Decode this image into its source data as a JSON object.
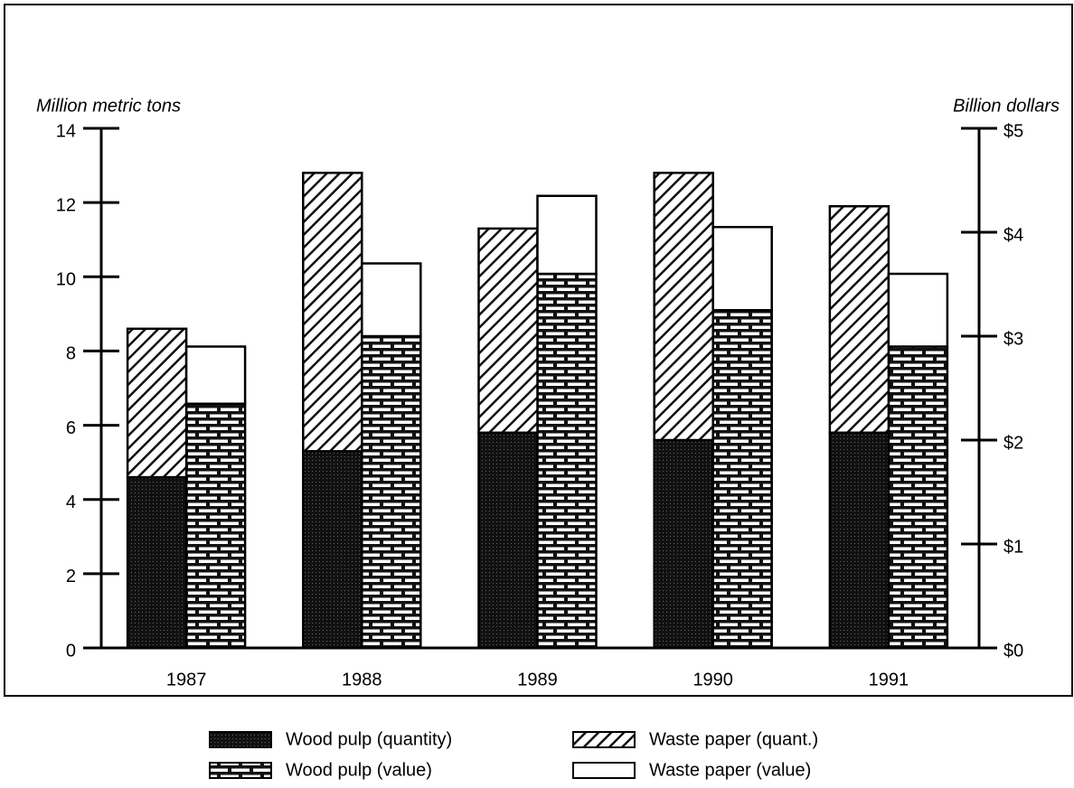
{
  "chart_data": {
    "type": "bar",
    "stacked": true,
    "categories": [
      "1987",
      "1988",
      "1989",
      "1990",
      "1991"
    ],
    "ylabel": "Million metric tons",
    "y2label": "Billion dollars",
    "ylim": [
      0,
      14
    ],
    "yticks": [
      0,
      2,
      4,
      6,
      8,
      10,
      12,
      14
    ],
    "y2lim": [
      0,
      5
    ],
    "y2ticks": [
      {
        "value": 0,
        "label": "$0"
      },
      {
        "value": 1,
        "label": "$1"
      },
      {
        "value": 2,
        "label": "$2"
      },
      {
        "value": 3,
        "label": "$3"
      },
      {
        "value": 4,
        "label": "$4"
      },
      {
        "value": 5,
        "label": "$5"
      }
    ],
    "series": [
      {
        "name": "Wood pulp (quantity)",
        "color": "#000000",
        "pattern": "dots",
        "values": [
          4.6,
          5.3,
          5.8,
          5.6,
          5.8
        ]
      },
      {
        "name": "Wood pulp (value)",
        "color": "#000000",
        "pattern": "brick",
        "axis": "y2",
        "values": [
          2.35,
          3.0,
          3.6,
          3.25,
          2.9
        ]
      },
      {
        "name": "Waste paper (quant.)",
        "color": "#000000",
        "pattern": "hatch",
        "values": [
          4.0,
          7.5,
          5.5,
          7.2,
          6.1
        ]
      },
      {
        "name": "Waste paper (value)",
        "color": "#ffffff",
        "pattern": "none",
        "axis": "y2",
        "values": [
          0.55,
          0.7,
          0.75,
          0.8,
          0.7
        ]
      }
    ]
  }
}
